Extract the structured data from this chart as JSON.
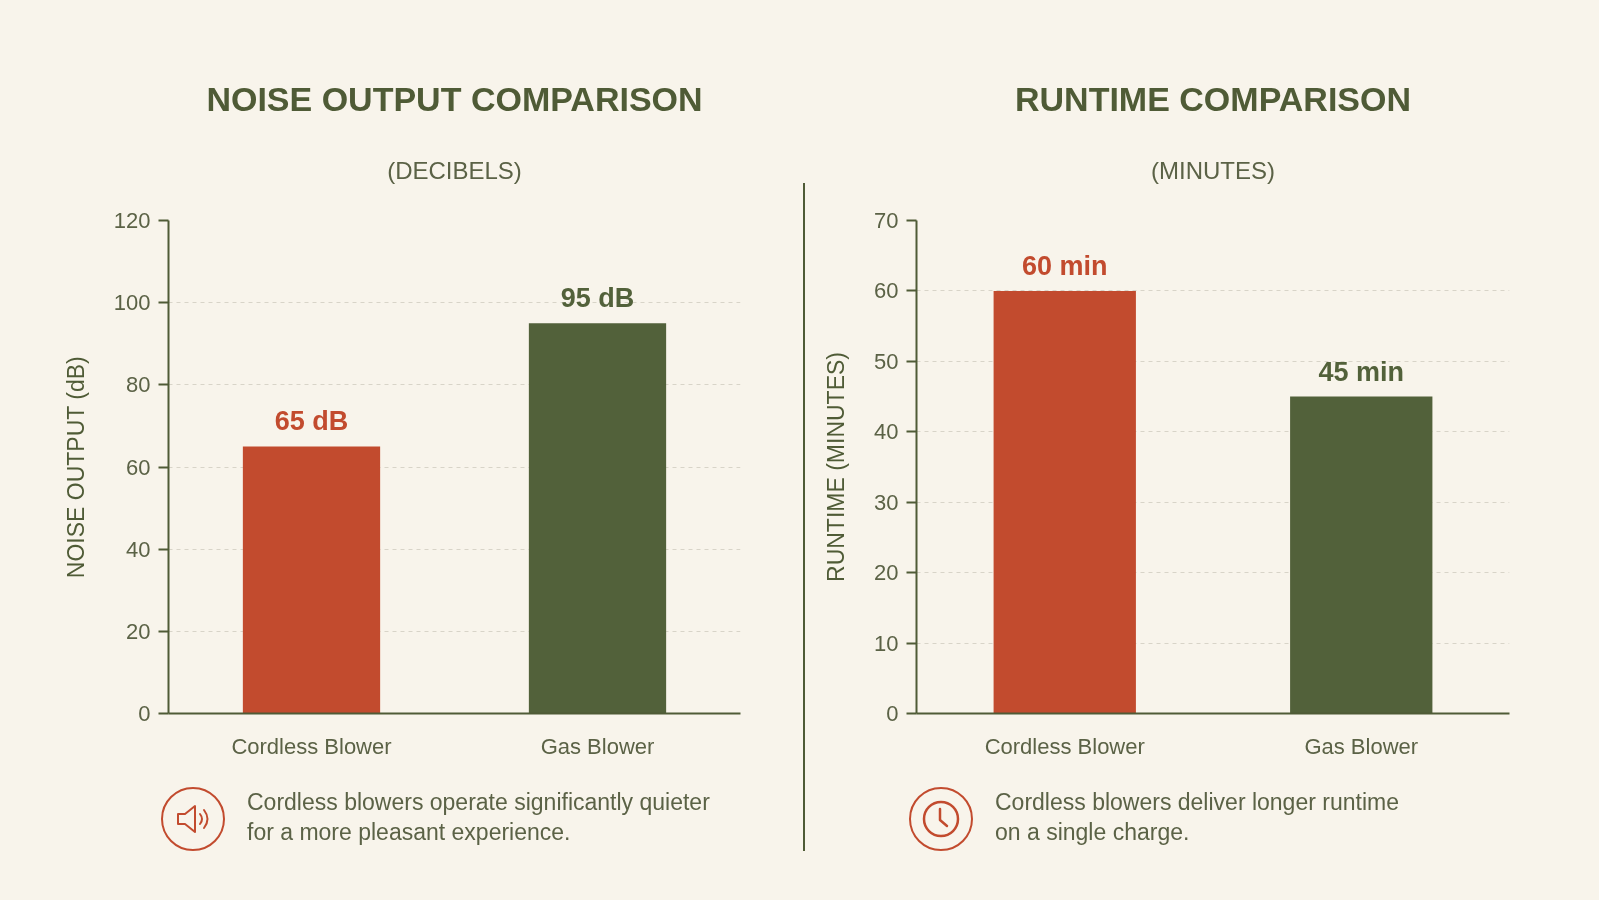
{
  "chart_data": [
    {
      "type": "bar",
      "title": "NOISE OUTPUT COMPARISON",
      "subtitle": "(DECIBELS)",
      "ylabel": "NOISE OUTPUT (dB)",
      "categories": [
        "Cordless Blower",
        "Gas Blower"
      ],
      "values": [
        65,
        95
      ],
      "colors": [
        "#c24b2e",
        "#52613a"
      ],
      "value_labels": [
        "65 dB",
        "95 dB"
      ],
      "ylim": [
        0,
        120
      ],
      "yticks": [
        0,
        20,
        40,
        60,
        80,
        100,
        120
      ],
      "grid": "y",
      "annotations": [
        "Cordless blowers operate significantly quieter for a more pleasant experience."
      ]
    },
    {
      "type": "bar",
      "title": "RUNTIME COMPARISON",
      "subtitle": "(MINUTES)",
      "ylabel": "RUNTIME (MINUTES)",
      "categories": [
        "Cordless Blower",
        "Gas Blower"
      ],
      "values": [
        60,
        45
      ],
      "colors": [
        "#c24b2e",
        "#52613a"
      ],
      "value_labels": [
        "60 min",
        "45 min"
      ],
      "ylim": [
        0,
        70
      ],
      "yticks": [
        0,
        10,
        20,
        30,
        40,
        50,
        60,
        70
      ],
      "grid": "y",
      "annotations": [
        "Cordless blowers deliver longer runtime on a single charge."
      ]
    }
  ]
}
